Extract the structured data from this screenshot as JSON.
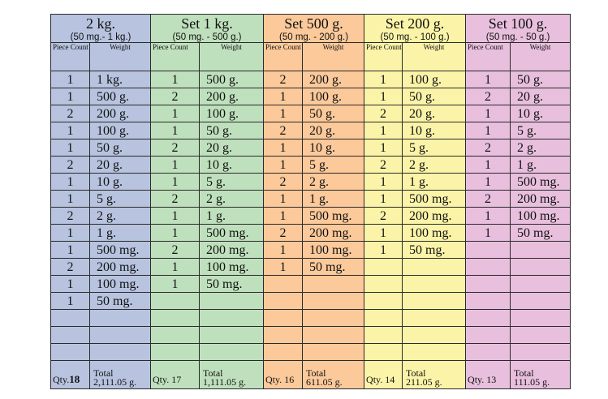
{
  "sets": [
    {
      "title": "2 kg.",
      "range": "(50 mg.- 1 kg.)",
      "piece_header": "Piece Count",
      "weight_header": "Weight",
      "rows": [
        [
          "1",
          "1 kg."
        ],
        [
          "1",
          "500 g."
        ],
        [
          "2",
          "200 g."
        ],
        [
          "1",
          "100 g."
        ],
        [
          "1",
          "50 g."
        ],
        [
          "2",
          "20 g."
        ],
        [
          "1",
          "10 g."
        ],
        [
          "1",
          "5 g."
        ],
        [
          "2",
          "2 g."
        ],
        [
          "1",
          "1 g."
        ],
        [
          "1",
          "500 mg."
        ],
        [
          "2",
          "200 mg."
        ],
        [
          "1",
          "100 mg."
        ],
        [
          "1",
          "50 mg."
        ],
        [
          "",
          ""
        ],
        [
          "",
          ""
        ],
        [
          "",
          ""
        ]
      ],
      "qty_label": "Qty.",
      "qty_value": "18",
      "total_label": "Total",
      "total_value": "2,111.05 g."
    },
    {
      "title": "Set 1 kg.",
      "range": "(50 mg. - 500 g.)",
      "piece_header": "Piece Count",
      "weight_header": "Weight",
      "rows": [
        [
          "1",
          "500 g."
        ],
        [
          "2",
          "200 g."
        ],
        [
          "1",
          "100 g."
        ],
        [
          "1",
          "50 g."
        ],
        [
          "2",
          "20 g."
        ],
        [
          "1",
          "10 g."
        ],
        [
          "1",
          "5 g."
        ],
        [
          "2",
          "2 g."
        ],
        [
          "1",
          "1 g."
        ],
        [
          "1",
          "500 mg."
        ],
        [
          "2",
          "200 mg."
        ],
        [
          "1",
          "100 mg."
        ],
        [
          "1",
          "50 mg."
        ],
        [
          "",
          ""
        ],
        [
          "",
          ""
        ],
        [
          "",
          ""
        ],
        [
          "",
          ""
        ]
      ],
      "qty_label": "Qty.",
      "qty_value": "17",
      "total_label": "Total",
      "total_value": "1,111.05 g."
    },
    {
      "title": "Set 500 g.",
      "range": "(50 mg. - 200 g.)",
      "piece_header": "Piece Count",
      "weight_header": "Weight",
      "rows": [
        [
          "2",
          "200 g."
        ],
        [
          "1",
          "100 g."
        ],
        [
          "1",
          "50 g."
        ],
        [
          "2",
          "20 g."
        ],
        [
          "1",
          "10 g."
        ],
        [
          "1",
          "5 g."
        ],
        [
          "2",
          "2 g."
        ],
        [
          "1",
          "1 g."
        ],
        [
          "1",
          "500 mg."
        ],
        [
          "2",
          "200 mg."
        ],
        [
          "1",
          "100 mg."
        ],
        [
          "1",
          "50 mg."
        ],
        [
          "",
          ""
        ],
        [
          "",
          ""
        ],
        [
          "",
          ""
        ],
        [
          "",
          ""
        ],
        [
          "",
          ""
        ]
      ],
      "qty_label": "Qty.",
      "qty_value": "16",
      "total_label": "Total",
      "total_value": "611.05 g."
    },
    {
      "title": "Set 200 g.",
      "range": "(50 mg. - 100 g.)",
      "piece_header": "Piece Count",
      "weight_header": "Weight",
      "rows": [
        [
          "1",
          "100 g."
        ],
        [
          "1",
          "50 g."
        ],
        [
          "2",
          "20 g."
        ],
        [
          "1",
          "10 g."
        ],
        [
          "1",
          "5 g."
        ],
        [
          "2",
          "2 g."
        ],
        [
          "1",
          "1 g."
        ],
        [
          "1",
          "500 mg."
        ],
        [
          "2",
          "200 mg."
        ],
        [
          "1",
          "100 mg."
        ],
        [
          "1",
          "50 mg."
        ],
        [
          "",
          ""
        ],
        [
          "",
          ""
        ],
        [
          "",
          ""
        ],
        [
          "",
          ""
        ],
        [
          "",
          ""
        ],
        [
          "",
          ""
        ]
      ],
      "qty_label": "Qty.",
      "qty_value": "14",
      "total_label": "Total",
      "total_value": "211.05 g."
    },
    {
      "title": "Set 100 g.",
      "range": "(50 mg. - 50 g.)",
      "piece_header": "Piece Count",
      "weight_header": "Weight",
      "rows": [
        [
          "1",
          "50 g."
        ],
        [
          "2",
          "20 g."
        ],
        [
          "1",
          "10 g."
        ],
        [
          "1",
          "5 g."
        ],
        [
          "2",
          "2 g."
        ],
        [
          "1",
          "1 g."
        ],
        [
          "1",
          "500 mg."
        ],
        [
          "2",
          "200 mg."
        ],
        [
          "1",
          "100 mg."
        ],
        [
          "1",
          "50 mg."
        ],
        [
          "",
          ""
        ],
        [
          "",
          ""
        ],
        [
          "",
          ""
        ],
        [
          "",
          ""
        ],
        [
          "",
          ""
        ],
        [
          "",
          ""
        ],
        [
          "",
          ""
        ]
      ],
      "qty_label": "Qty.",
      "qty_value": "13",
      "total_label": "Total",
      "total_value": "111.05 g."
    }
  ],
  "colors": {
    "set_0": "#b7c3df",
    "set_1": "#bfe0bd",
    "set_2": "#fbc99a",
    "set_3": "#fbf4a8",
    "set_4": "#e8bfdd",
    "grid": "#2a2a2a"
  }
}
